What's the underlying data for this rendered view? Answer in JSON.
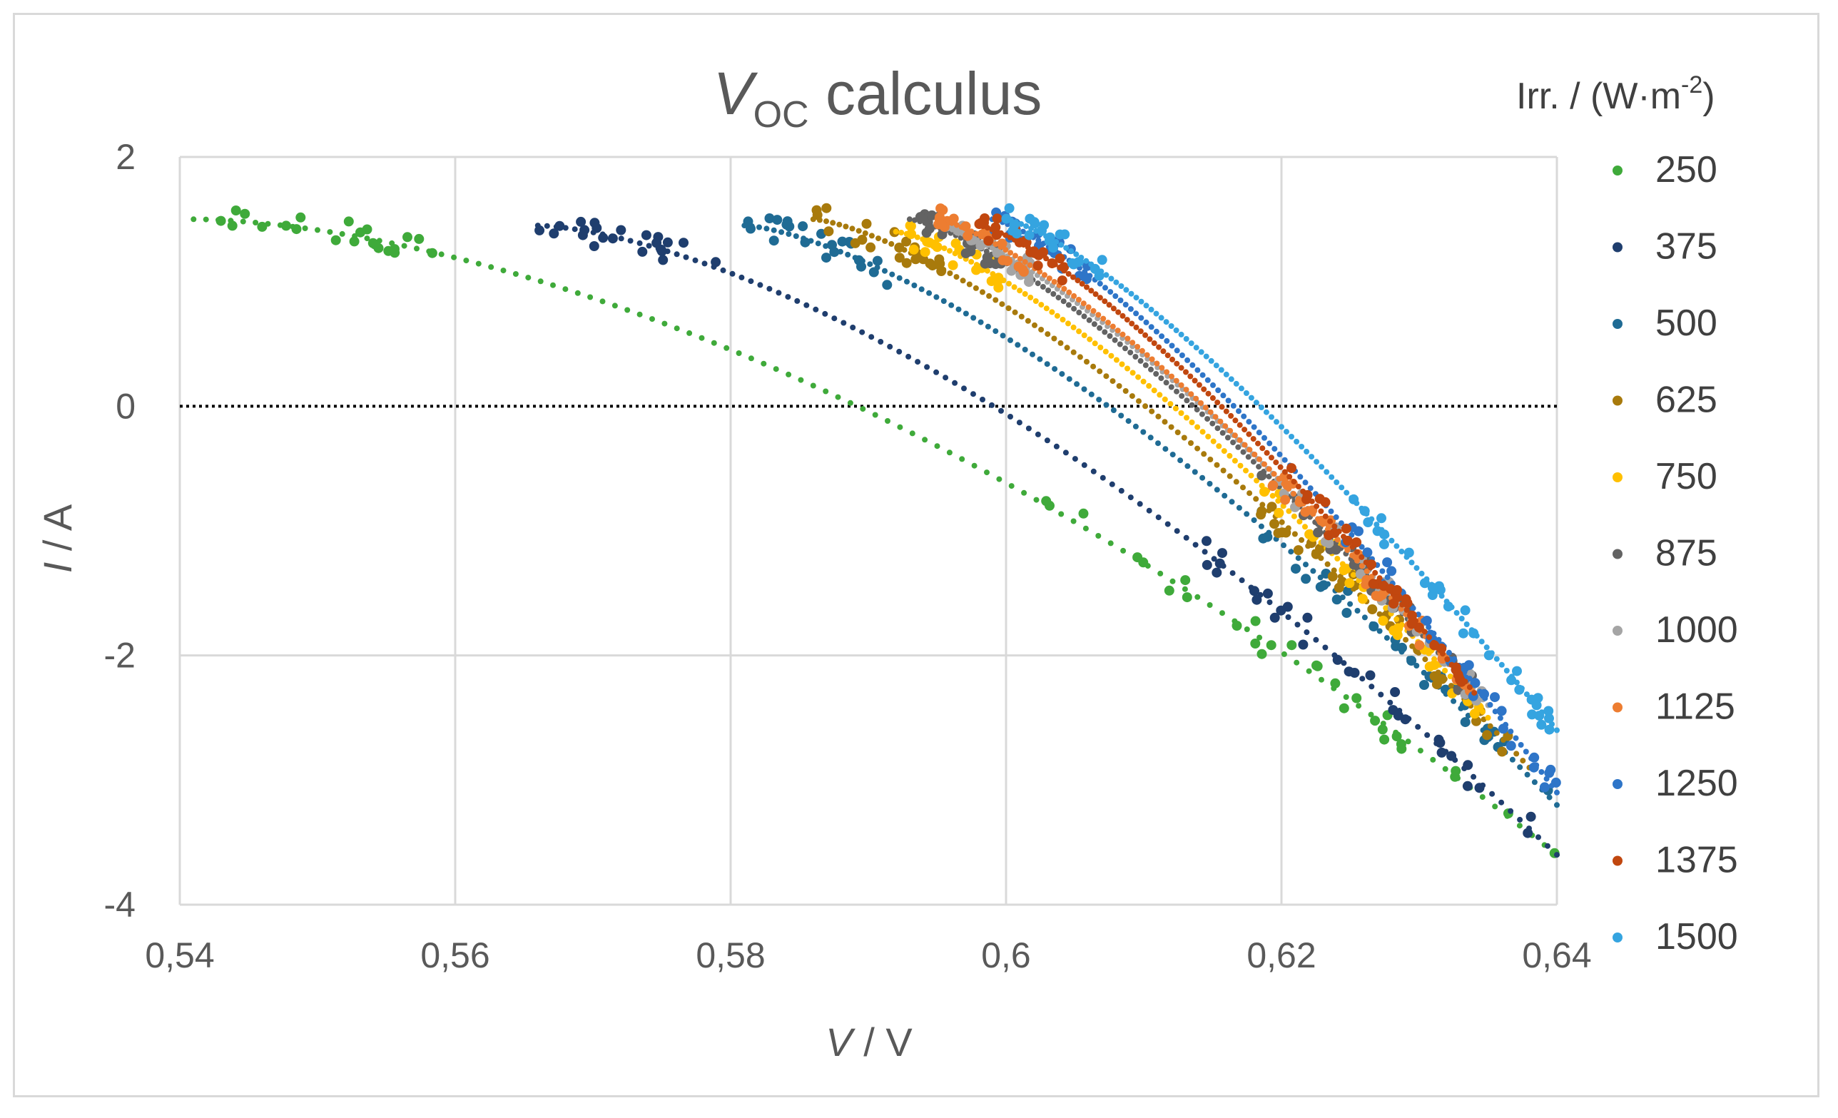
{
  "chart_data": {
    "type": "scatter",
    "title": {
      "symbol": "V",
      "subscript": "OC",
      "rest": " calculus"
    },
    "xlabel": {
      "symbol": "V",
      "rest": " / V"
    },
    "ylabel": {
      "symbol": "I",
      "rest": " / A"
    },
    "xlim": [
      0.54,
      0.64
    ],
    "ylim": [
      -4,
      2
    ],
    "x_ticks": [
      0.54,
      0.56,
      0.58,
      0.6,
      0.62,
      0.64
    ],
    "x_tick_labels": [
      "0,54",
      "0,56",
      "0,58",
      "0,6",
      "0,62",
      "0,64"
    ],
    "y_ticks": [
      2,
      0,
      -2,
      -4
    ],
    "y_tick_labels": [
      "2",
      "0",
      "-2",
      "-4"
    ],
    "grid": true,
    "reference_line": {
      "y": 0,
      "style": "dotted"
    },
    "legend": {
      "title": "Irr. / (W·m",
      "title_sup": "-2",
      "title_end": ")",
      "position": "right"
    },
    "series": [
      {
        "name": "250",
        "color": "#3faa3a",
        "v_start": 0.541,
        "i_start": 1.5,
        "v_end": 0.64,
        "i_end": -3.6,
        "shape": 0.7
      },
      {
        "name": "375",
        "color": "#1f3e6e",
        "v_start": 0.566,
        "i_start": 1.45,
        "v_end": 0.64,
        "i_end": -3.6,
        "shape": 0.55
      },
      {
        "name": "500",
        "color": "#1f6b94",
        "v_start": 0.581,
        "i_start": 1.45,
        "v_end": 0.64,
        "i_end": -3.2,
        "shape": 0.45
      },
      {
        "name": "625",
        "color": "#a87a0c",
        "v_start": 0.586,
        "i_start": 1.5,
        "v_end": 0.638,
        "i_end": -2.9,
        "shape": 0.4
      },
      {
        "name": "750",
        "color": "#ffc000",
        "v_start": 0.592,
        "i_start": 1.4,
        "v_end": 0.635,
        "i_end": -2.5,
        "shape": 0.35
      },
      {
        "name": "875",
        "color": "#636363",
        "v_start": 0.593,
        "i_start": 1.5,
        "v_end": 0.634,
        "i_end": -2.3,
        "shape": 0.35
      },
      {
        "name": "1000",
        "color": "#a5a5a5",
        "v_start": 0.595,
        "i_start": 1.45,
        "v_end": 0.635,
        "i_end": -2.4,
        "shape": 0.33
      },
      {
        "name": "1125",
        "color": "#ed7d31",
        "v_start": 0.595,
        "i_start": 1.5,
        "v_end": 0.634,
        "i_end": -2.3,
        "shape": 0.33
      },
      {
        "name": "1250",
        "color": "#2e75c8",
        "v_start": 0.599,
        "i_start": 1.5,
        "v_end": 0.64,
        "i_end": -3.1,
        "shape": 0.32
      },
      {
        "name": "1375",
        "color": "#c1470f",
        "v_start": 0.598,
        "i_start": 1.45,
        "v_end": 0.634,
        "i_end": -2.3,
        "shape": 0.33
      },
      {
        "name": "1500",
        "color": "#35a4e0",
        "v_start": 0.6,
        "i_start": 1.5,
        "v_end": 0.64,
        "i_end": -2.6,
        "shape": 0.3
      }
    ]
  }
}
